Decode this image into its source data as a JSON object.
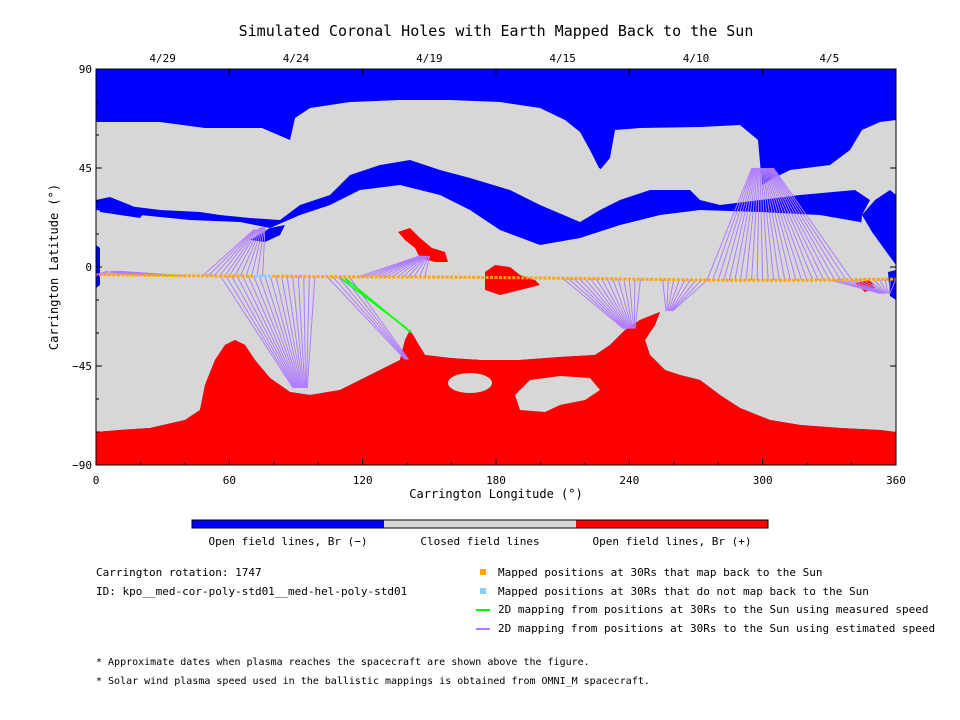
{
  "title": "Simulated Coronal Holes with Earth Mapped Back to the Sun",
  "x_axis": {
    "label": "Carrington Longitude (°)",
    "range": [
      0,
      360
    ],
    "ticks": [
      0,
      60,
      120,
      180,
      240,
      300,
      360
    ]
  },
  "y_axis": {
    "label": "Carrington Latitude (°)",
    "range": [
      -90,
      90
    ],
    "ticks": [
      -90,
      -45,
      0,
      45,
      90
    ]
  },
  "date_axis": [
    {
      "label": "4/29",
      "longitude": 30
    },
    {
      "label": "4/24",
      "longitude": 90
    },
    {
      "label": "4/19",
      "longitude": 150
    },
    {
      "label": "4/15",
      "longitude": 210
    },
    {
      "label": "4/10",
      "longitude": 270
    },
    {
      "label": "4/5",
      "longitude": 330
    }
  ],
  "colorbar": {
    "segments": [
      {
        "label": "Open field lines, Br (−)",
        "color": "#0000ff"
      },
      {
        "label": "Closed field lines",
        "color": "#d7d7d7"
      },
      {
        "label": "Open field lines, Br (+)",
        "color": "#ff0000"
      }
    ]
  },
  "info": {
    "rotation": "Carrington rotation: 1747",
    "id": "ID: kpo__med-cor-poly-std01__med-hel-poly-std01"
  },
  "legend": [
    {
      "label": "Mapped positions at 30Rs that map back to the Sun",
      "kind": "square",
      "color": "#ffa500"
    },
    {
      "label": "Mapped positions at 30Rs that do not map back to the Sun",
      "kind": "square",
      "color": "#87cefa"
    },
    {
      "label": "2D mapping from positions at 30Rs to the Sun using measured speed",
      "kind": "line",
      "color": "#00ff00"
    },
    {
      "label": "2D mapping from positions at 30Rs to the Sun using estimated speed",
      "kind": "line",
      "color": "#b07cff"
    }
  ],
  "notes": [
    "* Approximate dates when plasma reaches the spacecraft are shown above the figure.",
    "* Solar wind plasma speed used in the ballistic mappings is obtained from OMNI_M spacecraft."
  ],
  "colors": {
    "open_negative": "#0000ff",
    "closed": "#d7d7d7",
    "open_positive": "#ff0000",
    "mapped": "#ffa500",
    "not_mapped": "#87cefa",
    "measured_line": "#00ff00",
    "estimated_line": "#b07cff"
  },
  "chart_data": {
    "type": "map",
    "trajectory": {
      "longitudes": [
        0,
        40,
        80,
        120,
        160,
        200,
        240,
        280,
        320,
        360
      ],
      "latitudes": [
        -3.5,
        -4,
        -4.2,
        -4.5,
        -4.6,
        -5,
        -5.5,
        -6,
        -6,
        -5.5
      ]
    },
    "not_mapped_longitudes": [
      72,
      74,
      76,
      78
    ],
    "measured_mappings": [
      {
        "from": [
          110,
          -5
        ],
        "to": [
          140,
          -28
        ]
      },
      {
        "from": [
          112,
          -5
        ],
        "to": [
          142,
          -30
        ]
      }
    ],
    "estimated_mapping_bundles": [
      {
        "from_range": [
          0,
          40
        ],
        "to": [
          8,
          -2
        ]
      },
      {
        "from_range": [
          48,
          60
        ],
        "to": [
          72,
          17
        ]
      },
      {
        "from_range": [
          60,
          76
        ],
        "to": [
          75,
          18
        ]
      },
      {
        "from_range": [
          56,
          100
        ],
        "to": [
          92,
          -55
        ]
      },
      {
        "from_range": [
          104,
          116
        ],
        "to": [
          140,
          -42
        ]
      },
      {
        "from_range": [
          118,
          150
        ],
        "to": [
          148,
          5
        ]
      },
      {
        "from_range": [
          210,
          245
        ],
        "to": [
          240,
          -28
        ]
      },
      {
        "from_range": [
          255,
          275
        ],
        "to": [
          258,
          -20
        ]
      },
      {
        "from_range": [
          275,
          340
        ],
        "to": [
          300,
          45
        ]
      },
      {
        "from_range": [
          330,
          360
        ],
        "to": [
          355,
          -12
        ]
      }
    ]
  }
}
